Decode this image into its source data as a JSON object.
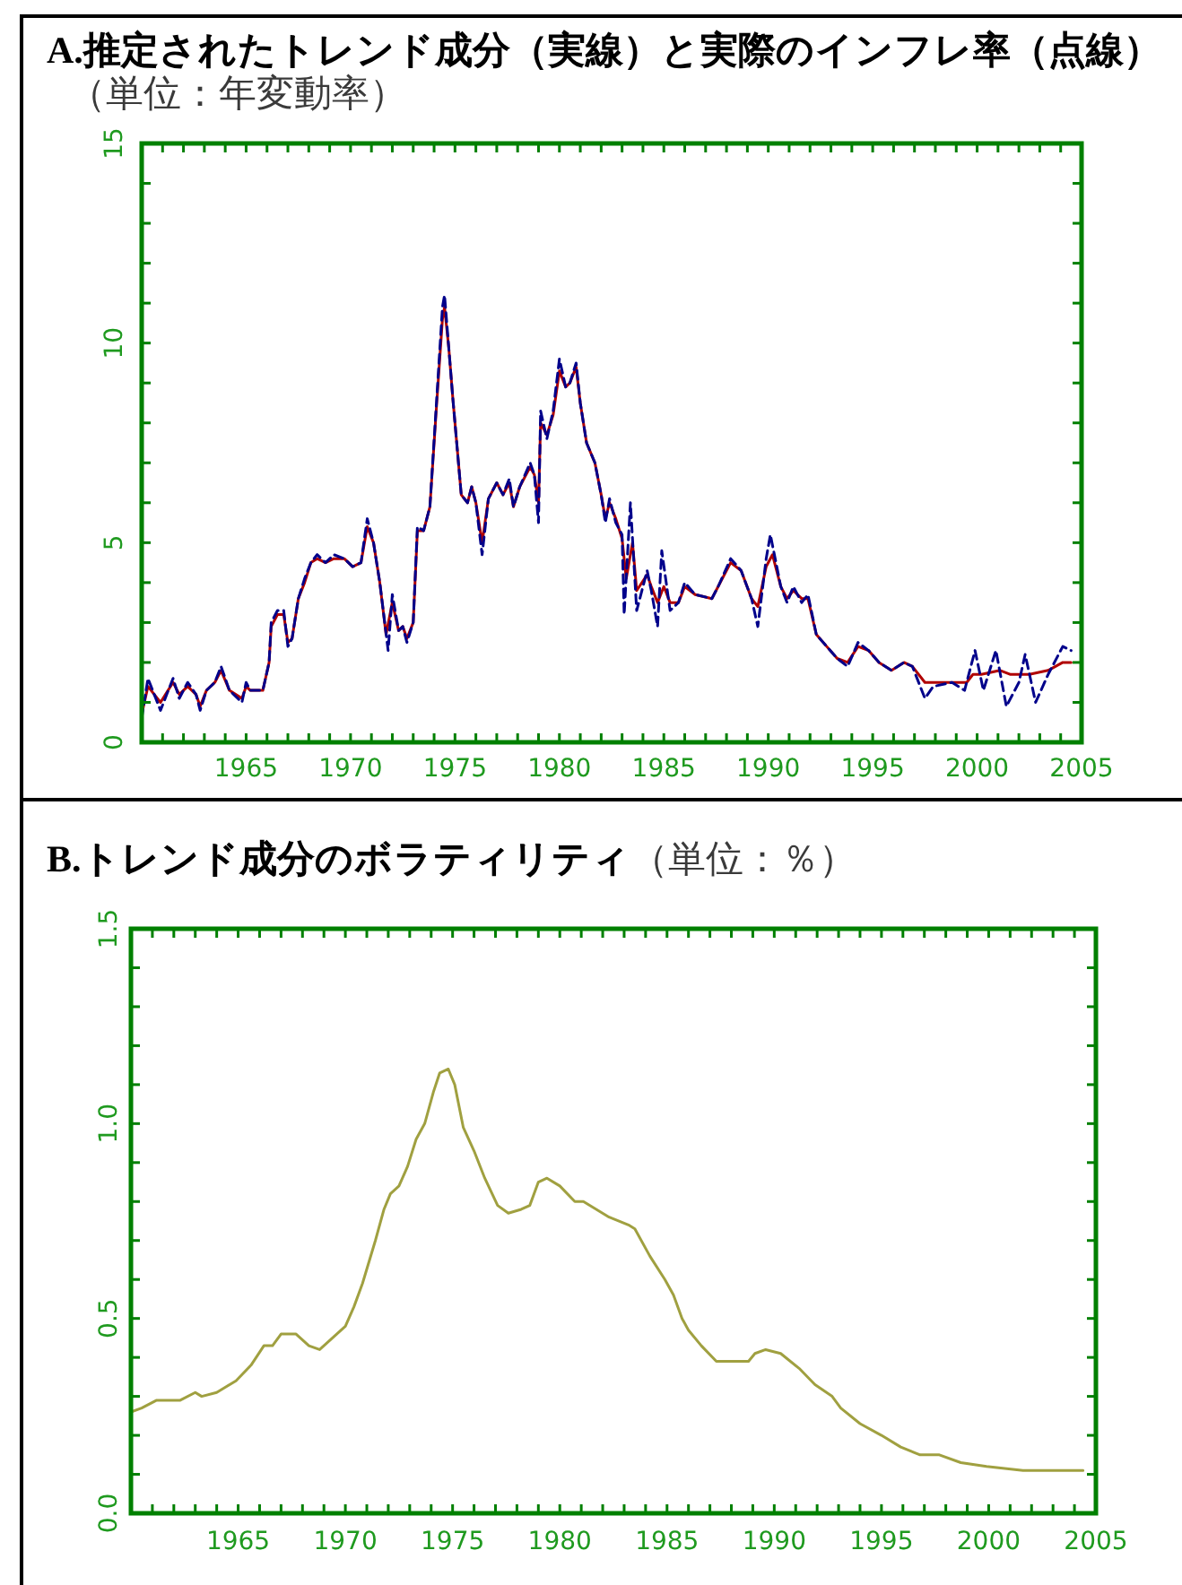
{
  "chart_data": [
    {
      "type": "line",
      "title": "A.推定されたトレンド成分（実線）と実際のインフレ率（点線）",
      "subtitle": "（単位：年変動率）",
      "xlim": [
        1960,
        2005
      ],
      "ylim": [
        0,
        15
      ],
      "xticks": [
        {
          "value": 1960,
          "label": null
        },
        {
          "value": 1961,
          "label": null
        },
        {
          "value": 1962,
          "label": null
        },
        {
          "value": 1963,
          "label": null
        },
        {
          "value": 1964,
          "label": null
        },
        1965,
        {
          "value": 1966,
          "label": null
        },
        {
          "value": 1967,
          "label": null
        },
        {
          "value": 1968,
          "label": null
        },
        {
          "value": 1969,
          "label": null
        },
        1970,
        {
          "value": 1971,
          "label": null
        },
        {
          "value": 1972,
          "label": null
        },
        {
          "value": 1973,
          "label": null
        },
        {
          "value": 1974,
          "label": null
        },
        1975,
        {
          "value": 1976,
          "label": null
        },
        {
          "value": 1977,
          "label": null
        },
        {
          "value": 1978,
          "label": null
        },
        {
          "value": 1979,
          "label": null
        },
        1980,
        {
          "value": 1981,
          "label": null
        },
        {
          "value": 1982,
          "label": null
        },
        {
          "value": 1983,
          "label": null
        },
        {
          "value": 1984,
          "label": null
        },
        1985,
        {
          "value": 1986,
          "label": null
        },
        {
          "value": 1987,
          "label": null
        },
        {
          "value": 1988,
          "label": null
        },
        {
          "value": 1989,
          "label": null
        },
        1990,
        {
          "value": 1991,
          "label": null
        },
        {
          "value": 1992,
          "label": null
        },
        {
          "value": 1993,
          "label": null
        },
        {
          "value": 1994,
          "label": null
        },
        1995,
        {
          "value": 1996,
          "label": null
        },
        {
          "value": 1997,
          "label": null
        },
        {
          "value": 1998,
          "label": null
        },
        {
          "value": 1999,
          "label": null
        },
        2000,
        {
          "value": 2001,
          "label": null
        },
        {
          "value": 2002,
          "label": null
        },
        {
          "value": 2003,
          "label": null
        },
        {
          "value": 2004,
          "label": null
        },
        2005
      ],
      "yticks": [
        0,
        {
          "value": 1,
          "label": null
        },
        {
          "value": 2,
          "label": null
        },
        {
          "value": 3,
          "label": null
        },
        {
          "value": 4,
          "label": null
        },
        5,
        {
          "value": 6,
          "label": null
        },
        {
          "value": 7,
          "label": null
        },
        {
          "value": 8,
          "label": null
        },
        {
          "value": 9,
          "label": null
        },
        10,
        {
          "value": 11,
          "label": null
        },
        {
          "value": 12,
          "label": null
        },
        {
          "value": 13,
          "label": null
        },
        {
          "value": 14,
          "label": null
        },
        15
      ],
      "series": [
        {
          "color": "#b00000",
          "line_style": "solid",
          "x": [
            1960.0,
            1960.3,
            1960.9,
            1961.5,
            1961.8,
            1962.2,
            1962.6,
            1962.8,
            1963.1,
            1963.5,
            1963.8,
            1964.2,
            1964.8,
            1965.0,
            1965.2,
            1965.8,
            1966.1,
            1966.2,
            1966.5,
            1966.8,
            1967.0,
            1967.2,
            1967.5,
            1967.8,
            1968.1,
            1968.4,
            1968.8,
            1969.2,
            1969.7,
            1970.1,
            1970.5,
            1970.8,
            1971.1,
            1971.4,
            1971.7,
            1972.0,
            1972.3,
            1972.5,
            1972.7,
            1973.0,
            1973.2,
            1973.5,
            1973.8,
            1974.1,
            1974.4,
            1974.5,
            1974.7,
            1974.9,
            1975.3,
            1975.6,
            1975.8,
            1976.0,
            1976.3,
            1976.6,
            1977.0,
            1977.3,
            1977.6,
            1977.8,
            1978.1,
            1978.6,
            1978.8,
            1979.0,
            1979.1,
            1979.4,
            1979.7,
            1980.0,
            1980.3,
            1980.5,
            1980.8,
            1981.0,
            1981.3,
            1981.7,
            1982.0,
            1982.2,
            1982.4,
            1982.7,
            1983.0,
            1983.2,
            1983.5,
            1983.7,
            1984.2,
            1984.4,
            1984.7,
            1985.0,
            1985.3,
            1985.7,
            1986.0,
            1986.5,
            1987.3,
            1987.6,
            1988.2,
            1988.7,
            1989.2,
            1989.5,
            1989.9,
            1990.2,
            1990.6,
            1990.9,
            1991.2,
            1991.6,
            1991.9,
            1992.3,
            1992.8,
            1993.3,
            1993.8,
            1994.3,
            1994.8,
            1995.3,
            1995.9,
            1996.5,
            1996.9,
            1997.5,
            1997.9,
            1998.8,
            1999.5,
            1999.8,
            2000.2,
            2001.1,
            2001.6,
            2002.5,
            2003.4,
            2004.1,
            2004.5
          ],
          "values": [
            0.7,
            1.4,
            1.0,
            1.5,
            1.2,
            1.4,
            1.2,
            0.9,
            1.3,
            1.5,
            1.8,
            1.3,
            1.1,
            1.4,
            1.3,
            1.3,
            2.0,
            2.9,
            3.2,
            3.2,
            2.5,
            2.6,
            3.6,
            4.0,
            4.5,
            4.6,
            4.5,
            4.6,
            4.6,
            4.4,
            4.5,
            5.4,
            5.0,
            4.0,
            2.7,
            3.5,
            2.8,
            2.9,
            2.6,
            3.0,
            5.3,
            5.3,
            5.9,
            8.3,
            10.6,
            10.9,
            9.9,
            8.6,
            6.2,
            6.0,
            6.4,
            6.0,
            5.0,
            6.1,
            6.5,
            6.2,
            6.5,
            5.9,
            6.4,
            6.9,
            6.7,
            6.0,
            8.0,
            7.7,
            8.2,
            9.3,
            8.9,
            9.0,
            9.4,
            8.5,
            7.5,
            7.0,
            6.2,
            5.6,
            6.0,
            5.6,
            5.1,
            4.1,
            5.0,
            3.8,
            4.2,
            3.9,
            3.5,
            3.9,
            3.5,
            3.5,
            3.9,
            3.7,
            3.6,
            3.9,
            4.5,
            4.3,
            3.6,
            3.4,
            4.4,
            4.7,
            3.9,
            3.6,
            3.8,
            3.6,
            3.6,
            2.7,
            2.4,
            2.1,
            2.0,
            2.4,
            2.3,
            2.0,
            1.8,
            2.0,
            1.9,
            1.5,
            1.5,
            1.5,
            1.5,
            1.7,
            1.7,
            1.8,
            1.7,
            1.7,
            1.8,
            2.0,
            2.0
          ]
        },
        {
          "color": "#00008b",
          "line_style": "dashed",
          "x": [
            1960.0,
            1960.3,
            1960.9,
            1961.5,
            1961.8,
            1962.2,
            1962.6,
            1962.8,
            1963.1,
            1963.5,
            1963.8,
            1964.2,
            1964.8,
            1965.0,
            1965.2,
            1965.8,
            1966.1,
            1966.2,
            1966.5,
            1966.8,
            1967.0,
            1967.2,
            1967.5,
            1967.8,
            1968.1,
            1968.4,
            1968.8,
            1969.2,
            1969.7,
            1970.1,
            1970.5,
            1970.8,
            1971.1,
            1971.4,
            1971.8,
            1972.0,
            1972.3,
            1972.5,
            1972.7,
            1973.0,
            1973.2,
            1973.5,
            1973.8,
            1974.1,
            1974.4,
            1974.5,
            1974.7,
            1974.9,
            1975.3,
            1975.6,
            1975.8,
            1976.0,
            1976.3,
            1976.6,
            1977.0,
            1977.3,
            1977.6,
            1977.8,
            1978.1,
            1978.6,
            1978.8,
            1979.0,
            1979.1,
            1979.4,
            1979.7,
            1980.0,
            1980.3,
            1980.5,
            1980.8,
            1981.0,
            1981.3,
            1981.7,
            1982.0,
            1982.2,
            1982.4,
            1982.7,
            1983.0,
            1983.1,
            1983.4,
            1983.7,
            1984.2,
            1984.4,
            1984.7,
            1984.9,
            1985.3,
            1985.7,
            1986.0,
            1986.5,
            1987.3,
            1987.6,
            1988.2,
            1988.7,
            1989.2,
            1989.5,
            1989.9,
            1990.1,
            1990.6,
            1990.9,
            1991.2,
            1991.6,
            1991.9,
            1992.3,
            1992.8,
            1993.3,
            1993.8,
            1994.3,
            1994.8,
            1995.3,
            1995.9,
            1996.5,
            1996.9,
            1997.5,
            1997.9,
            1998.8,
            1999.4,
            1999.9,
            2000.3,
            2000.9,
            2001.4,
            2002.0,
            2002.3,
            2002.8,
            2003.4,
            2004.1,
            2004.5
          ],
          "values": [
            0.6,
            1.6,
            0.8,
            1.6,
            1.1,
            1.5,
            1.2,
            0.8,
            1.3,
            1.5,
            1.9,
            1.3,
            1.0,
            1.5,
            1.3,
            1.3,
            2.0,
            3.0,
            3.3,
            3.3,
            2.4,
            2.6,
            3.6,
            4.1,
            4.5,
            4.7,
            4.5,
            4.7,
            4.6,
            4.4,
            4.5,
            5.6,
            5.0,
            4.0,
            2.3,
            3.7,
            2.8,
            2.9,
            2.5,
            3.0,
            5.4,
            5.3,
            5.9,
            8.4,
            10.9,
            11.2,
            9.9,
            8.6,
            6.2,
            6.0,
            6.4,
            6.0,
            4.7,
            6.1,
            6.5,
            6.2,
            6.6,
            5.9,
            6.4,
            7.0,
            6.7,
            5.5,
            8.3,
            7.6,
            8.3,
            9.6,
            8.9,
            9.0,
            9.5,
            8.5,
            7.5,
            7.0,
            6.2,
            5.5,
            6.1,
            5.5,
            5.2,
            3.2,
            6.0,
            3.3,
            4.3,
            3.8,
            2.9,
            4.8,
            3.3,
            3.5,
            4.0,
            3.7,
            3.6,
            3.9,
            4.6,
            4.3,
            3.6,
            2.9,
            4.6,
            5.2,
            3.9,
            3.5,
            3.9,
            3.5,
            3.7,
            2.7,
            2.4,
            2.1,
            1.9,
            2.5,
            2.3,
            2.0,
            1.8,
            2.0,
            1.9,
            1.1,
            1.4,
            1.5,
            1.3,
            2.3,
            1.3,
            2.3,
            0.9,
            1.5,
            2.2,
            1.0,
            1.7,
            2.4,
            2.3
          ]
        }
      ]
    },
    {
      "type": "line",
      "title": "B.トレンド成分のボラティリティ",
      "subtitle": "（単位：％）",
      "xlim": [
        1960,
        2005
      ],
      "ylim": [
        0,
        1.5
      ],
      "xticks": [
        {
          "value": 1960,
          "label": null
        },
        {
          "value": 1961,
          "label": null
        },
        {
          "value": 1962,
          "label": null
        },
        {
          "value": 1963,
          "label": null
        },
        {
          "value": 1964,
          "label": null
        },
        1965,
        {
          "value": 1966,
          "label": null
        },
        {
          "value": 1967,
          "label": null
        },
        {
          "value": 1968,
          "label": null
        },
        {
          "value": 1969,
          "label": null
        },
        1970,
        {
          "value": 1971,
          "label": null
        },
        {
          "value": 1972,
          "label": null
        },
        {
          "value": 1973,
          "label": null
        },
        {
          "value": 1974,
          "label": null
        },
        1975,
        {
          "value": 1976,
          "label": null
        },
        {
          "value": 1977,
          "label": null
        },
        {
          "value": 1978,
          "label": null
        },
        {
          "value": 1979,
          "label": null
        },
        1980,
        {
          "value": 1981,
          "label": null
        },
        {
          "value": 1982,
          "label": null
        },
        {
          "value": 1983,
          "label": null
        },
        {
          "value": 1984,
          "label": null
        },
        1985,
        {
          "value": 1986,
          "label": null
        },
        {
          "value": 1987,
          "label": null
        },
        {
          "value": 1988,
          "label": null
        },
        {
          "value": 1989,
          "label": null
        },
        1990,
        {
          "value": 1991,
          "label": null
        },
        {
          "value": 1992,
          "label": null
        },
        {
          "value": 1993,
          "label": null
        },
        {
          "value": 1994,
          "label": null
        },
        1995,
        {
          "value": 1996,
          "label": null
        },
        {
          "value": 1997,
          "label": null
        },
        {
          "value": 1998,
          "label": null
        },
        {
          "value": 1999,
          "label": null
        },
        2000,
        {
          "value": 2001,
          "label": null
        },
        {
          "value": 2002,
          "label": null
        },
        {
          "value": 2003,
          "label": null
        },
        {
          "value": 2004,
          "label": null
        },
        2005
      ],
      "yticks": [
        {
          "value": 0,
          "label": "0.0"
        },
        {
          "value": 0.1,
          "label": null
        },
        {
          "value": 0.2,
          "label": null
        },
        {
          "value": 0.3,
          "label": null
        },
        {
          "value": 0.4,
          "label": null
        },
        0.5,
        {
          "value": 0.6,
          "label": null
        },
        {
          "value": 0.7,
          "label": null
        },
        {
          "value": 0.8,
          "label": null
        },
        {
          "value": 0.9,
          "label": null
        },
        {
          "value": 1,
          "label": "1.0"
        },
        {
          "value": 1.1,
          "label": null
        },
        {
          "value": 1.2,
          "label": null
        },
        {
          "value": 1.3,
          "label": null
        },
        {
          "value": 1.4,
          "label": null
        },
        1.5
      ],
      "series": [
        {
          "color": "#a0a040",
          "line_style": "solid",
          "x": [
            1960.0,
            1960.5,
            1961.2,
            1962.3,
            1963.0,
            1963.3,
            1964.0,
            1964.9,
            1965.6,
            1966.2,
            1966.6,
            1967.0,
            1967.7,
            1968.3,
            1968.8,
            1969.4,
            1970.0,
            1970.4,
            1970.8,
            1971.4,
            1971.8,
            1972.1,
            1972.5,
            1972.9,
            1973.3,
            1973.7,
            1974.1,
            1974.4,
            1974.8,
            1975.1,
            1975.5,
            1976.0,
            1976.5,
            1977.1,
            1977.6,
            1978.2,
            1978.6,
            1979.0,
            1979.4,
            1980.0,
            1980.7,
            1981.1,
            1981.7,
            1982.3,
            1983.2,
            1983.5,
            1984.2,
            1984.9,
            1985.3,
            1985.7,
            1986.0,
            1986.6,
            1987.3,
            1988.0,
            1988.8,
            1989.1,
            1989.6,
            1990.3,
            1991.2,
            1991.9,
            1992.7,
            1993.1,
            1994.0,
            1995.0,
            1995.9,
            1996.8,
            1997.7,
            1998.7,
            1999.9,
            2001.6,
            2003.0,
            2004.4
          ],
          "values": [
            0.26,
            0.27,
            0.29,
            0.29,
            0.31,
            0.3,
            0.31,
            0.34,
            0.38,
            0.43,
            0.43,
            0.46,
            0.46,
            0.43,
            0.42,
            0.45,
            0.48,
            0.53,
            0.59,
            0.7,
            0.78,
            0.82,
            0.84,
            0.89,
            0.96,
            1.0,
            1.08,
            1.13,
            1.14,
            1.1,
            0.99,
            0.93,
            0.86,
            0.79,
            0.77,
            0.78,
            0.79,
            0.85,
            0.86,
            0.84,
            0.8,
            0.8,
            0.78,
            0.76,
            0.74,
            0.73,
            0.66,
            0.6,
            0.56,
            0.5,
            0.47,
            0.43,
            0.39,
            0.39,
            0.39,
            0.41,
            0.42,
            0.41,
            0.37,
            0.33,
            0.3,
            0.27,
            0.23,
            0.2,
            0.17,
            0.15,
            0.15,
            0.13,
            0.12,
            0.11,
            0.11,
            0.11
          ]
        }
      ]
    }
  ]
}
